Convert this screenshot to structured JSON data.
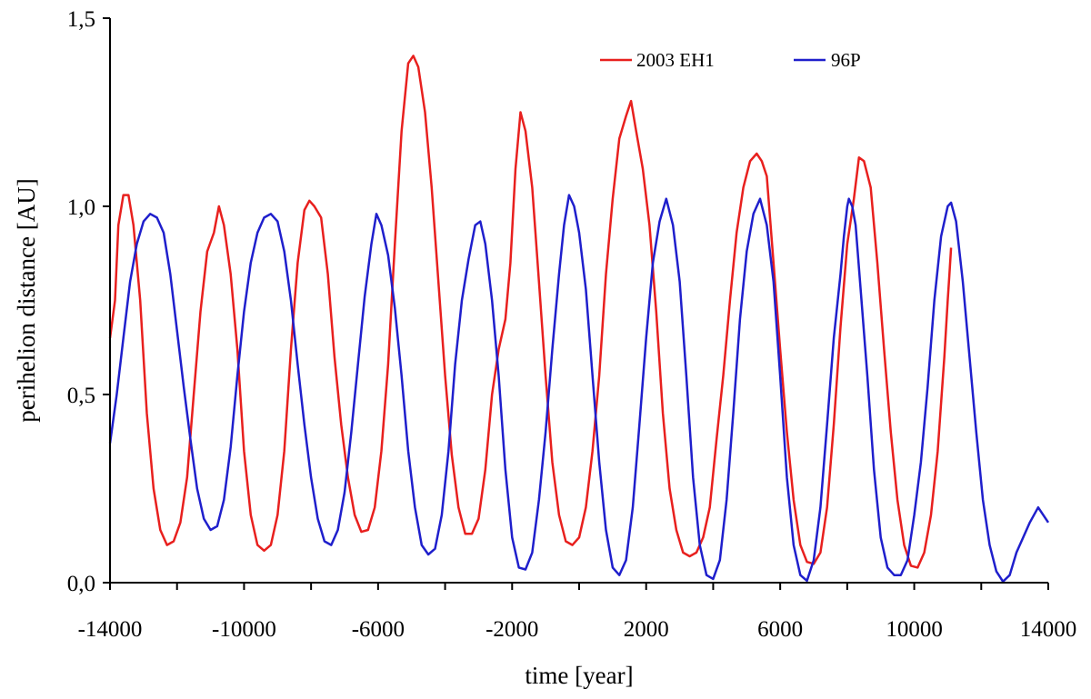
{
  "chart_data": {
    "type": "line",
    "title": "",
    "xlabel": "time [year]",
    "ylabel": "perihelion distance [AU]",
    "xlim": [
      -14000,
      14000
    ],
    "ylim": [
      0.0,
      1.5
    ],
    "x_ticks": [
      -14000,
      -12000,
      -10000,
      -8000,
      -6000,
      -4000,
      -2000,
      0,
      2000,
      4000,
      6000,
      8000,
      10000,
      12000,
      14000
    ],
    "x_tick_labels": [
      "-14000",
      "-10000",
      "-6000",
      "-2000",
      "2000",
      "6000",
      "10000",
      "14000"
    ],
    "x_tick_label_values": [
      -14000,
      -10000,
      -6000,
      -2000,
      2000,
      6000,
      10000,
      14000
    ],
    "y_ticks": [
      0.0,
      0.5,
      1.0,
      1.5
    ],
    "y_tick_labels": [
      "0,0",
      "0,5",
      "1,0",
      "1,5"
    ],
    "grid": false,
    "legend_position": "top-right",
    "series": [
      {
        "name": "2003 EH1",
        "color": "#e8201e",
        "points": [
          [
            -14000,
            0.65
          ],
          [
            -13850,
            0.75
          ],
          [
            -13750,
            0.95
          ],
          [
            -13600,
            1.03
          ],
          [
            -13450,
            1.03
          ],
          [
            -13300,
            0.95
          ],
          [
            -13100,
            0.75
          ],
          [
            -12900,
            0.45
          ],
          [
            -12700,
            0.25
          ],
          [
            -12500,
            0.14
          ],
          [
            -12300,
            0.1
          ],
          [
            -12100,
            0.11
          ],
          [
            -11900,
            0.16
          ],
          [
            -11700,
            0.28
          ],
          [
            -11500,
            0.5
          ],
          [
            -11300,
            0.72
          ],
          [
            -11100,
            0.88
          ],
          [
            -10900,
            0.93
          ],
          [
            -10750,
            1.0
          ],
          [
            -10600,
            0.95
          ],
          [
            -10400,
            0.82
          ],
          [
            -10200,
            0.62
          ],
          [
            -10000,
            0.35
          ],
          [
            -9800,
            0.18
          ],
          [
            -9600,
            0.1
          ],
          [
            -9400,
            0.085
          ],
          [
            -9200,
            0.1
          ],
          [
            -9000,
            0.18
          ],
          [
            -8800,
            0.35
          ],
          [
            -8600,
            0.62
          ],
          [
            -8400,
            0.85
          ],
          [
            -8200,
            0.99
          ],
          [
            -8050,
            1.015
          ],
          [
            -7900,
            1.0
          ],
          [
            -7700,
            0.97
          ],
          [
            -7500,
            0.82
          ],
          [
            -7300,
            0.6
          ],
          [
            -7100,
            0.42
          ],
          [
            -6900,
            0.28
          ],
          [
            -6700,
            0.18
          ],
          [
            -6500,
            0.135
          ],
          [
            -6300,
            0.14
          ],
          [
            -6100,
            0.2
          ],
          [
            -5900,
            0.35
          ],
          [
            -5700,
            0.58
          ],
          [
            -5500,
            0.9
          ],
          [
            -5300,
            1.2
          ],
          [
            -5100,
            1.38
          ],
          [
            -4950,
            1.4
          ],
          [
            -4800,
            1.37
          ],
          [
            -4600,
            1.25
          ],
          [
            -4400,
            1.05
          ],
          [
            -4200,
            0.8
          ],
          [
            -4000,
            0.55
          ],
          [
            -3800,
            0.34
          ],
          [
            -3600,
            0.2
          ],
          [
            -3400,
            0.13
          ],
          [
            -3200,
            0.13
          ],
          [
            -3000,
            0.17
          ],
          [
            -2800,
            0.3
          ],
          [
            -2600,
            0.5
          ],
          [
            -2400,
            0.62
          ],
          [
            -2200,
            0.7
          ],
          [
            -2050,
            0.85
          ],
          [
            -1900,
            1.1
          ],
          [
            -1750,
            1.25
          ],
          [
            -1600,
            1.2
          ],
          [
            -1400,
            1.05
          ],
          [
            -1200,
            0.8
          ],
          [
            -1000,
            0.55
          ],
          [
            -800,
            0.32
          ],
          [
            -600,
            0.18
          ],
          [
            -400,
            0.11
          ],
          [
            -200,
            0.1
          ],
          [
            0,
            0.12
          ],
          [
            200,
            0.2
          ],
          [
            400,
            0.35
          ],
          [
            600,
            0.55
          ],
          [
            800,
            0.82
          ],
          [
            1000,
            1.02
          ],
          [
            1200,
            1.18
          ],
          [
            1400,
            1.24
          ],
          [
            1550,
            1.28
          ],
          [
            1700,
            1.2
          ],
          [
            1900,
            1.1
          ],
          [
            2100,
            0.95
          ],
          [
            2300,
            0.72
          ],
          [
            2500,
            0.45
          ],
          [
            2700,
            0.25
          ],
          [
            2900,
            0.14
          ],
          [
            3100,
            0.08
          ],
          [
            3300,
            0.07
          ],
          [
            3500,
            0.08
          ],
          [
            3700,
            0.12
          ],
          [
            3900,
            0.2
          ],
          [
            4100,
            0.38
          ],
          [
            4300,
            0.55
          ],
          [
            4500,
            0.75
          ],
          [
            4700,
            0.93
          ],
          [
            4900,
            1.05
          ],
          [
            5100,
            1.12
          ],
          [
            5300,
            1.14
          ],
          [
            5450,
            1.12
          ],
          [
            5600,
            1.08
          ],
          [
            5800,
            0.85
          ],
          [
            6000,
            0.62
          ],
          [
            6200,
            0.4
          ],
          [
            6400,
            0.22
          ],
          [
            6600,
            0.1
          ],
          [
            6800,
            0.055
          ],
          [
            7000,
            0.05
          ],
          [
            7200,
            0.08
          ],
          [
            7400,
            0.2
          ],
          [
            7600,
            0.42
          ],
          [
            7800,
            0.68
          ],
          [
            8000,
            0.9
          ],
          [
            8200,
            1.02
          ],
          [
            8350,
            1.13
          ],
          [
            8500,
            1.12
          ],
          [
            8700,
            1.05
          ],
          [
            8900,
            0.85
          ],
          [
            9100,
            0.62
          ],
          [
            9300,
            0.4
          ],
          [
            9500,
            0.22
          ],
          [
            9700,
            0.1
          ],
          [
            9900,
            0.045
          ],
          [
            10100,
            0.04
          ],
          [
            10300,
            0.08
          ],
          [
            10500,
            0.18
          ],
          [
            10700,
            0.35
          ],
          [
            10900,
            0.6
          ],
          [
            11000,
            0.75
          ],
          [
            11050,
            0.82
          ],
          [
            11100,
            0.89
          ]
        ]
      },
      {
        "name": "96P",
        "color": "#1f1fcc",
        "points": [
          [
            -14000,
            0.37
          ],
          [
            -13800,
            0.5
          ],
          [
            -13600,
            0.65
          ],
          [
            -13400,
            0.8
          ],
          [
            -13200,
            0.9
          ],
          [
            -13000,
            0.96
          ],
          [
            -12800,
            0.98
          ],
          [
            -12600,
            0.97
          ],
          [
            -12400,
            0.93
          ],
          [
            -12200,
            0.82
          ],
          [
            -12000,
            0.67
          ],
          [
            -11800,
            0.52
          ],
          [
            -11600,
            0.38
          ],
          [
            -11400,
            0.25
          ],
          [
            -11200,
            0.17
          ],
          [
            -11000,
            0.14
          ],
          [
            -10800,
            0.15
          ],
          [
            -10600,
            0.22
          ],
          [
            -10400,
            0.36
          ],
          [
            -10200,
            0.55
          ],
          [
            -10000,
            0.72
          ],
          [
            -9800,
            0.85
          ],
          [
            -9600,
            0.93
          ],
          [
            -9400,
            0.97
          ],
          [
            -9200,
            0.98
          ],
          [
            -9000,
            0.96
          ],
          [
            -8800,
            0.88
          ],
          [
            -8600,
            0.75
          ],
          [
            -8400,
            0.58
          ],
          [
            -8200,
            0.42
          ],
          [
            -8000,
            0.28
          ],
          [
            -7800,
            0.17
          ],
          [
            -7600,
            0.11
          ],
          [
            -7400,
            0.1
          ],
          [
            -7200,
            0.14
          ],
          [
            -7000,
            0.24
          ],
          [
            -6800,
            0.4
          ],
          [
            -6600,
            0.58
          ],
          [
            -6400,
            0.76
          ],
          [
            -6200,
            0.9
          ],
          [
            -6050,
            0.98
          ],
          [
            -5900,
            0.95
          ],
          [
            -5700,
            0.87
          ],
          [
            -5500,
            0.73
          ],
          [
            -5300,
            0.55
          ],
          [
            -5100,
            0.35
          ],
          [
            -4900,
            0.2
          ],
          [
            -4700,
            0.1
          ],
          [
            -4500,
            0.075
          ],
          [
            -4300,
            0.09
          ],
          [
            -4100,
            0.18
          ],
          [
            -3900,
            0.35
          ],
          [
            -3700,
            0.58
          ],
          [
            -3500,
            0.75
          ],
          [
            -3300,
            0.86
          ],
          [
            -3100,
            0.95
          ],
          [
            -2950,
            0.96
          ],
          [
            -2800,
            0.9
          ],
          [
            -2600,
            0.75
          ],
          [
            -2400,
            0.55
          ],
          [
            -2200,
            0.3
          ],
          [
            -2000,
            0.12
          ],
          [
            -1800,
            0.04
          ],
          [
            -1600,
            0.035
          ],
          [
            -1400,
            0.08
          ],
          [
            -1200,
            0.22
          ],
          [
            -1000,
            0.4
          ],
          [
            -800,
            0.62
          ],
          [
            -600,
            0.82
          ],
          [
            -450,
            0.95
          ],
          [
            -300,
            1.03
          ],
          [
            -150,
            1.0
          ],
          [
            0,
            0.93
          ],
          [
            200,
            0.78
          ],
          [
            400,
            0.55
          ],
          [
            600,
            0.32
          ],
          [
            800,
            0.14
          ],
          [
            1000,
            0.04
          ],
          [
            1200,
            0.02
          ],
          [
            1400,
            0.06
          ],
          [
            1600,
            0.2
          ],
          [
            1800,
            0.42
          ],
          [
            2000,
            0.65
          ],
          [
            2200,
            0.85
          ],
          [
            2400,
            0.96
          ],
          [
            2600,
            1.02
          ],
          [
            2800,
            0.95
          ],
          [
            3000,
            0.8
          ],
          [
            3200,
            0.55
          ],
          [
            3400,
            0.28
          ],
          [
            3600,
            0.1
          ],
          [
            3800,
            0.02
          ],
          [
            4000,
            0.01
          ],
          [
            4200,
            0.06
          ],
          [
            4400,
            0.22
          ],
          [
            4600,
            0.45
          ],
          [
            4800,
            0.7
          ],
          [
            5000,
            0.88
          ],
          [
            5200,
            0.98
          ],
          [
            5400,
            1.02
          ],
          [
            5600,
            0.95
          ],
          [
            5800,
            0.8
          ],
          [
            6000,
            0.55
          ],
          [
            6200,
            0.28
          ],
          [
            6400,
            0.1
          ],
          [
            6600,
            0.02
          ],
          [
            6800,
            0.005
          ],
          [
            7000,
            0.06
          ],
          [
            7200,
            0.2
          ],
          [
            7400,
            0.42
          ],
          [
            7600,
            0.65
          ],
          [
            7800,
            0.82
          ],
          [
            7900,
            0.92
          ],
          [
            8000,
            1.0
          ],
          [
            8050,
            1.02
          ],
          [
            8150,
            1.0
          ],
          [
            8250,
            0.95
          ],
          [
            8400,
            0.78
          ],
          [
            8600,
            0.55
          ],
          [
            8800,
            0.3
          ],
          [
            9000,
            0.12
          ],
          [
            9200,
            0.04
          ],
          [
            9400,
            0.02
          ],
          [
            9600,
            0.02
          ],
          [
            9800,
            0.06
          ],
          [
            10000,
            0.18
          ],
          [
            10200,
            0.32
          ],
          [
            10400,
            0.52
          ],
          [
            10600,
            0.75
          ],
          [
            10800,
            0.92
          ],
          [
            11000,
            1.0
          ],
          [
            11100,
            1.01
          ],
          [
            11250,
            0.96
          ],
          [
            11450,
            0.8
          ],
          [
            11650,
            0.6
          ],
          [
            11850,
            0.4
          ],
          [
            12050,
            0.22
          ],
          [
            12250,
            0.1
          ],
          [
            12450,
            0.03
          ],
          [
            12650,
            0.003
          ],
          [
            12850,
            0.02
          ],
          [
            13050,
            0.08
          ],
          [
            13250,
            0.12
          ],
          [
            13450,
            0.16
          ],
          [
            13700,
            0.2
          ],
          [
            14000,
            0.16
          ]
        ]
      }
    ]
  }
}
